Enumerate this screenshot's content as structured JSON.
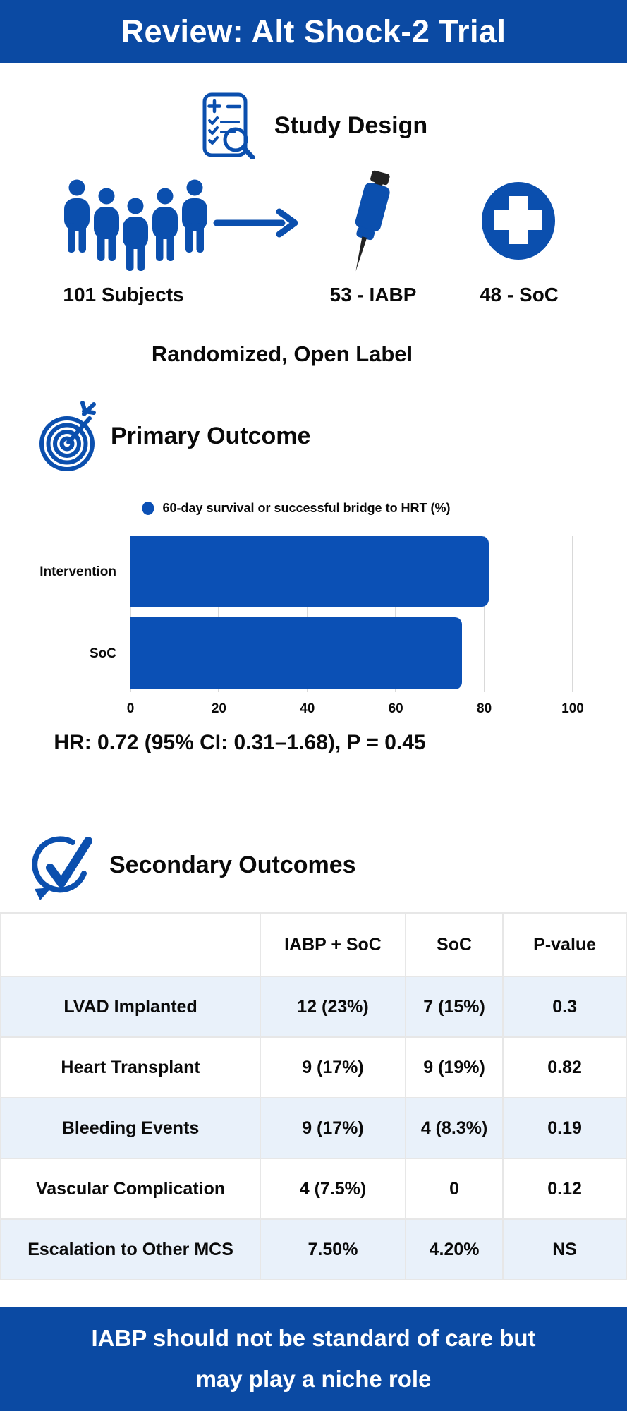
{
  "header": {
    "title": "Review: Alt Shock-2 Trial"
  },
  "study_design": {
    "heading": "Study Design",
    "subjects_label": "101 Subjects",
    "arm1_label": "53 - IABP",
    "arm2_label": "48 - SoC",
    "design_label": "Randomized, Open Label",
    "icons": [
      "study-report-icon",
      "subjects-group-icon",
      "arrow-right-icon",
      "pipette-icon",
      "medical-cross-icon"
    ]
  },
  "primary_outcome": {
    "heading": "Primary Outcome",
    "stat_line": "HR: 0.72 (95% CI: 0.31–1.68), P = 0.45"
  },
  "chart_data": {
    "type": "bar",
    "orientation": "horizontal",
    "title": "",
    "legend_label": "60-day survival or successful bridge to HRT (%)",
    "legend_position": "top",
    "categories": [
      "Intervention",
      "SoC"
    ],
    "values": [
      81,
      75
    ],
    "xlabel": "",
    "ylabel": "",
    "xlim": [
      0,
      100
    ],
    "xticks": [
      0,
      20,
      40,
      60,
      80,
      100
    ],
    "grid": true,
    "bar_color": "#0b50b5"
  },
  "secondary_outcomes": {
    "heading": "Secondary Outcomes",
    "table": {
      "columns": [
        "",
        "IABP + SoC",
        "SoC",
        "P-value"
      ],
      "rows": [
        [
          "LVAD Implanted",
          "12 (23%)",
          "7 (15%)",
          "0.3"
        ],
        [
          "Heart Transplant",
          "9 (17%)",
          "9 (19%)",
          "0.82"
        ],
        [
          "Bleeding Events",
          "9 (17%)",
          "4 (8.3%)",
          "0.19"
        ],
        [
          "Vascular Complication",
          "4 (7.5%)",
          "0",
          "0.12"
        ],
        [
          "Escalation to Other MCS",
          "7.50%",
          "4.20%",
          "NS"
        ]
      ]
    }
  },
  "footer": {
    "conclusion_line1": "IABP should not be standard of care but",
    "conclusion_line2": "may play a niche role"
  },
  "colors": {
    "banner_blue": "#0b4aa3",
    "accent_blue": "#0b50b5",
    "row_alt_blue": "#e9f1fa",
    "grid_gray": "#d9d9d9"
  }
}
